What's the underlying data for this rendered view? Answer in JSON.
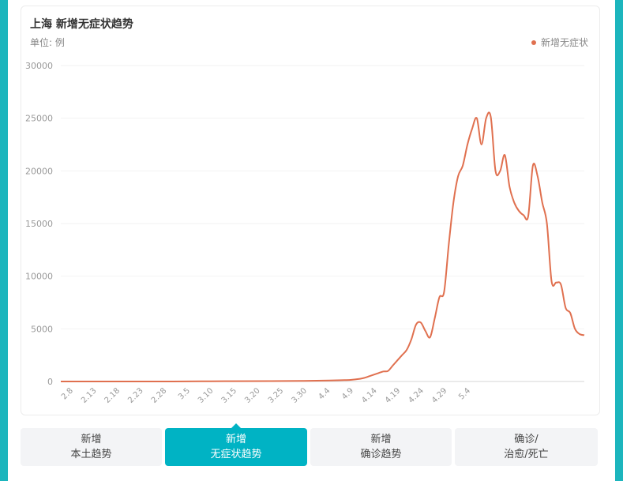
{
  "header": {
    "title": "上海 新增无症状趋势",
    "unit": "单位: 例",
    "legend_label": "新增无症状"
  },
  "colors": {
    "line": "#e0704f",
    "active_tab": "#00b3c4",
    "frame": "#1cb5bd"
  },
  "chart_data": {
    "type": "line",
    "title": "上海 新增无症状趋势",
    "ylabel": "单位: 例",
    "ylim": [
      0,
      30000
    ],
    "yticks": [
      "0",
      "5000",
      "10000",
      "15000",
      "20000",
      "25000",
      "30000"
    ],
    "xticks": [
      "2.8",
      "2.13",
      "2.18",
      "2.23",
      "2.28",
      "3.5",
      "3.10",
      "3.15",
      "3.20",
      "3.25",
      "3.30",
      "4.4",
      "4.9",
      "4.14",
      "4.19",
      "4.24",
      "4.29",
      "5.4"
    ],
    "series": [
      {
        "name": "新增无症状",
        "points": [
          [
            0,
            0
          ],
          [
            24,
            0
          ],
          [
            35,
            30
          ],
          [
            45,
            40
          ],
          [
            52,
            60
          ],
          [
            56,
            80
          ],
          [
            60,
            120
          ],
          [
            62,
            150
          ],
          [
            64,
            250
          ],
          [
            65,
            350
          ],
          [
            66,
            500
          ],
          [
            67,
            650
          ],
          [
            68,
            800
          ],
          [
            69,
            950
          ],
          [
            70,
            1000
          ],
          [
            71,
            1500
          ],
          [
            72,
            2000
          ],
          [
            73,
            2500
          ],
          [
            74,
            3000
          ],
          [
            75,
            4000
          ],
          [
            76,
            5400
          ],
          [
            77,
            5600
          ],
          [
            78,
            4800
          ],
          [
            79,
            4200
          ],
          [
            80,
            6000
          ],
          [
            81,
            8000
          ],
          [
            82,
            8500
          ],
          [
            83,
            13000
          ],
          [
            84,
            17000
          ],
          [
            85,
            19500
          ],
          [
            86,
            20500
          ],
          [
            87,
            22500
          ],
          [
            88,
            24000
          ],
          [
            89,
            25000
          ],
          [
            90,
            22500
          ],
          [
            91,
            25000
          ],
          [
            92,
            25100
          ],
          [
            93,
            20000
          ],
          [
            94,
            20000
          ],
          [
            95,
            21500
          ],
          [
            96,
            18500
          ],
          [
            97,
            17000
          ],
          [
            98,
            16200
          ],
          [
            99,
            15800
          ],
          [
            100,
            15700
          ],
          [
            101,
            20500
          ],
          [
            102,
            19500
          ],
          [
            103,
            17000
          ],
          [
            104,
            15000
          ],
          [
            105,
            9500
          ],
          [
            106,
            9400
          ],
          [
            107,
            9200
          ],
          [
            108,
            7000
          ],
          [
            109,
            6500
          ],
          [
            110,
            5000
          ],
          [
            111,
            4500
          ],
          [
            112,
            4400
          ]
        ]
      }
    ]
  },
  "tabs": [
    {
      "line1": "新增",
      "line2": "本土趋势"
    },
    {
      "line1": "新增",
      "line2": "无症状趋势"
    },
    {
      "line1": "新增",
      "line2": "确诊趋势"
    },
    {
      "line1": "确诊/",
      "line2": "治愈/死亡"
    }
  ]
}
